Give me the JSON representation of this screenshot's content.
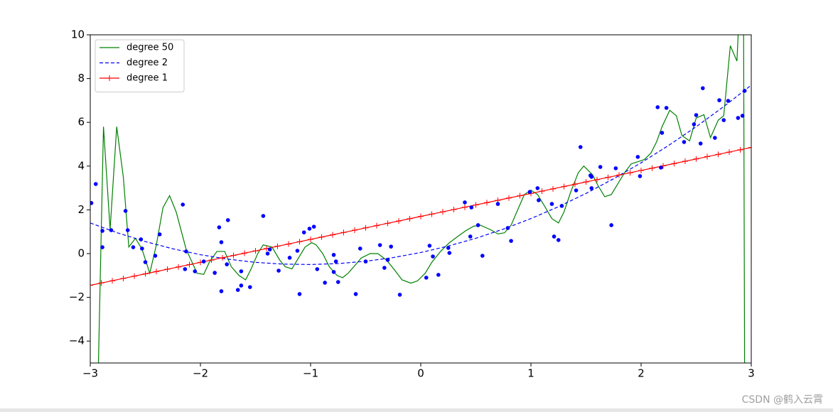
{
  "chart_data": {
    "type": "line",
    "xlim": [
      -3,
      3
    ],
    "ylim": [
      -5,
      10
    ],
    "xticks": [
      {
        "value": -3,
        "label": "−3"
      },
      {
        "value": -2,
        "label": "−2"
      },
      {
        "value": -1,
        "label": "−1"
      },
      0,
      1,
      2,
      3
    ],
    "yticks": [
      {
        "value": -4,
        "label": "−4"
      },
      {
        "value": -2,
        "label": "−2"
      },
      0,
      2,
      4,
      6,
      8,
      10
    ],
    "grid": false,
    "legend": "upper left",
    "series": [
      {
        "name": "degree 50",
        "color": "#008000",
        "linestyle": "solid",
        "x": [
          -2.93,
          -2.88,
          -2.82,
          -2.76,
          -2.7,
          -2.65,
          -2.59,
          -2.53,
          -2.46,
          -2.4,
          -2.34,
          -2.28,
          -2.22,
          -2.13,
          -2.03,
          -1.97,
          -1.92,
          -1.85,
          -1.78,
          -1.72,
          -1.65,
          -1.59,
          -1.54,
          -1.48,
          -1.43,
          -1.35,
          -1.28,
          -1.23,
          -1.17,
          -1.11,
          -1.05,
          -0.99,
          -0.95,
          -0.89,
          -0.83,
          -0.76,
          -0.71,
          -0.66,
          -0.59,
          -0.54,
          -0.46,
          -0.39,
          -0.31,
          -0.23,
          -0.17,
          -0.09,
          -0.03,
          0.04,
          0.1,
          0.18,
          0.26,
          0.34,
          0.41,
          0.48,
          0.54,
          0.63,
          0.7,
          0.76,
          0.82,
          0.88,
          0.94,
          1.0,
          1.06,
          1.12,
          1.19,
          1.25,
          1.3,
          1.36,
          1.43,
          1.48,
          1.56,
          1.61,
          1.67,
          1.73,
          1.79,
          1.85,
          1.91,
          1.97,
          2.03,
          2.09,
          2.14,
          2.19,
          2.26,
          2.32,
          2.37,
          2.44,
          2.5,
          2.57,
          2.63,
          2.7,
          2.75,
          2.81,
          2.87,
          2.89,
          2.93,
          2.94
        ],
        "values": [
          -6,
          5.8,
          1.1,
          5.8,
          3.5,
          0.3,
          0.7,
          0.2,
          -0.9,
          0.4,
          2.1,
          2.65,
          1.9,
          0.2,
          -0.9,
          -0.95,
          -0.4,
          0.1,
          0.1,
          -0.6,
          -1.0,
          -1.2,
          -0.7,
          0.0,
          0.4,
          0.3,
          -0.3,
          -0.6,
          -0.7,
          -0.2,
          0.3,
          0.5,
          0.4,
          0.0,
          -0.6,
          -1.0,
          -1.1,
          -0.9,
          -0.5,
          -0.2,
          0.0,
          0.0,
          -0.3,
          -0.8,
          -1.2,
          -1.35,
          -1.25,
          -0.9,
          -0.4,
          0.1,
          0.5,
          0.8,
          1.05,
          1.25,
          1.3,
          1.1,
          0.9,
          0.95,
          1.3,
          2.0,
          2.7,
          2.9,
          2.7,
          2.2,
          1.6,
          1.4,
          1.9,
          2.8,
          3.7,
          4.0,
          3.6,
          3.1,
          2.6,
          2.7,
          3.2,
          3.7,
          4.1,
          4.2,
          4.3,
          4.6,
          5.1,
          5.8,
          6.55,
          6.3,
          5.4,
          5.15,
          6.2,
          6.35,
          5.3,
          6.1,
          6.3,
          9.5,
          8.8,
          11,
          11,
          -6
        ]
      },
      {
        "name": "degree 2",
        "color": "#0000ff",
        "linestyle": "dashed",
        "x": [
          -3,
          -2.75,
          -2.5,
          -2.25,
          -2,
          -1.75,
          -1.5,
          -1.25,
          -1,
          -0.75,
          -0.5,
          -0.25,
          0,
          0.25,
          0.5,
          0.75,
          1,
          1.25,
          1.5,
          1.75,
          2,
          2.25,
          2.5,
          2.75,
          3
        ],
        "values": [
          1.4,
          0.944,
          0.55,
          0.219,
          -0.05,
          -0.256,
          -0.4,
          -0.481,
          -0.5,
          -0.456,
          -0.35,
          -0.181,
          0.05,
          0.344,
          0.7,
          1.119,
          1.6,
          2.144,
          2.75,
          3.419,
          4.15,
          4.944,
          5.8,
          6.719,
          7.7
        ]
      },
      {
        "name": "degree 1",
        "color": "#ff0000",
        "linestyle": "solid",
        "marker": "+",
        "x": [
          -3,
          -2.9,
          -2.8,
          -2.7,
          -2.6,
          -2.5,
          -2.4,
          -2.3,
          -2.2,
          -2.1,
          -2,
          -1.9,
          -1.8,
          -1.7,
          -1.6,
          -1.5,
          -1.4,
          -1.3,
          -1.2,
          -1.1,
          -1,
          -0.9,
          -0.8,
          -0.7,
          -0.6,
          -0.5,
          -0.4,
          -0.3,
          -0.2,
          -0.1,
          0,
          0.1,
          0.2,
          0.3,
          0.4,
          0.5,
          0.6,
          0.7,
          0.8,
          0.9,
          1,
          1.1,
          1.2,
          1.3,
          1.4,
          1.5,
          1.6,
          1.7,
          1.8,
          1.9,
          2,
          2.1,
          2.2,
          2.3,
          2.4,
          2.5,
          2.6,
          2.7,
          2.8,
          2.9,
          3
        ],
        "values": [
          -1.45,
          -1.345,
          -1.24,
          -1.135,
          -1.03,
          -0.925,
          -0.82,
          -0.715,
          -0.61,
          -0.505,
          -0.4,
          -0.295,
          -0.19,
          -0.085,
          0.02,
          0.125,
          0.23,
          0.335,
          0.44,
          0.545,
          0.65,
          0.755,
          0.86,
          0.965,
          1.07,
          1.175,
          1.28,
          1.385,
          1.49,
          1.595,
          1.7,
          1.805,
          1.91,
          2.015,
          2.12,
          2.225,
          2.33,
          2.435,
          2.54,
          2.645,
          2.75,
          2.855,
          2.96,
          3.065,
          3.17,
          3.275,
          3.38,
          3.485,
          3.59,
          3.695,
          3.8,
          3.905,
          4.01,
          4.115,
          4.22,
          4.325,
          4.43,
          4.535,
          4.64,
          4.745,
          4.85
        ]
      },
      {
        "type": "scatter",
        "color": "#0000ff",
        "x": [
          -2.99,
          -2.95,
          -2.89,
          -2.89,
          -2.81,
          -2.68,
          -2.66,
          -2.61,
          -2.54,
          -2.53,
          -2.5,
          -2.41,
          -2.37,
          -2.16,
          -2.13,
          -2.14,
          -2.05,
          -1.97,
          -1.87,
          -1.83,
          -1.81,
          -1.81,
          -1.75,
          -1.76,
          -1.66,
          -1.63,
          -1.63,
          -1.55,
          -1.43,
          -1.39,
          -1.37,
          -1.29,
          -1.19,
          -1.12,
          -1.1,
          -1.06,
          -1.01,
          -0.97,
          -0.94,
          -0.87,
          -0.79,
          -0.77,
          -0.79,
          -0.75,
          -0.59,
          -0.55,
          -0.5,
          -0.37,
          -0.33,
          -0.3,
          -0.27,
          -0.19,
          0.05,
          0.08,
          0.11,
          0.16,
          0.25,
          0.26,
          0.4,
          0.46,
          0.45,
          0.52,
          0.56,
          0.7,
          0.79,
          0.82,
          0.99,
          1.06,
          1.07,
          1.19,
          1.21,
          1.25,
          1.28,
          1.41,
          1.45,
          1.54,
          1.55,
          1.55,
          1.63,
          1.73,
          1.77,
          1.97,
          1.99,
          2.15,
          2.18,
          2.19,
          2.23,
          2.39,
          2.48,
          2.5,
          2.54,
          2.56,
          2.67,
          2.71,
          2.75,
          2.79,
          2.88,
          2.92,
          2.94
        ],
        "values": [
          2.31,
          3.18,
          1.04,
          0.29,
          1.07,
          1.95,
          1.07,
          0.29,
          0.65,
          0.23,
          -0.39,
          -0.1,
          0.88,
          2.24,
          0.1,
          -0.71,
          -0.81,
          -0.36,
          -0.88,
          1.2,
          0.52,
          -1.72,
          1.53,
          -0.49,
          -1.66,
          -1.46,
          -0.81,
          -1.53,
          1.72,
          0.0,
          0.19,
          -0.78,
          -0.19,
          0.13,
          -1.85,
          0.97,
          1.14,
          1.23,
          -0.71,
          -1.33,
          -0.06,
          -0.36,
          -0.84,
          -1.3,
          -1.85,
          0.23,
          -0.36,
          0.39,
          -0.65,
          -0.29,
          0.32,
          -1.88,
          -1.1,
          0.36,
          -0.13,
          -0.97,
          0.26,
          0.03,
          2.34,
          2.11,
          0.78,
          1.3,
          -0.1,
          2.27,
          1.17,
          0.58,
          2.82,
          2.99,
          2.44,
          2.27,
          0.78,
          0.62,
          2.18,
          2.89,
          4.87,
          3.57,
          3.51,
          2.99,
          3.96,
          1.3,
          3.9,
          4.42,
          3.54,
          6.69,
          3.93,
          5.52,
          6.66,
          5.1,
          5.91,
          6.33,
          5.03,
          7.56,
          5.29,
          7.01,
          6.1,
          6.98,
          6.2,
          6.3,
          7.44
        ]
      }
    ]
  },
  "watermark": "CSDN @鹤入云霄"
}
